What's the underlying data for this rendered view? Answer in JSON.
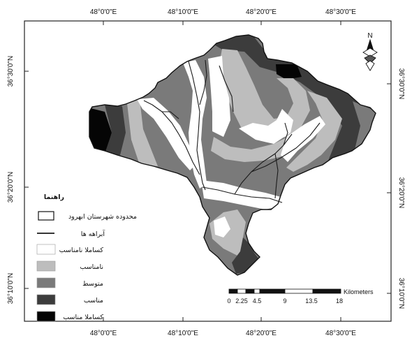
{
  "axes": {
    "top": [
      "48°0'0\"E",
      "48°10'0\"E",
      "48°20'0\"E",
      "48°30'0\"E"
    ],
    "bottom": [
      "48°0'0\"E",
      "48°10'0\"E",
      "48°20'0\"E",
      "48°30'0\"E"
    ],
    "left": [
      "36°30'0\"N",
      "36°20'0\"N",
      "36°10'0\"N"
    ],
    "right": [
      "36°30'0\"N",
      "36°20'0\"N",
      "36°10'0\"N"
    ]
  },
  "north_arrow": {
    "letter": "N",
    "icon": "compass-rose-icon"
  },
  "legend": {
    "title": "راهنما",
    "boundary_label": "محدوده شهرستان ابهرود",
    "rivers_label": "آبراهه ها",
    "classes": [
      {
        "label": "كساملا نامناسب",
        "color": "#ffffff"
      },
      {
        "label": "نامناسب",
        "color": "#bdbdbd"
      },
      {
        "label": "متوسط",
        "color": "#7a7a7a"
      },
      {
        "label": "مناسب",
        "color": "#3c3c3c"
      },
      {
        "label": "كساملا مناسب",
        "color": "#050505"
      }
    ]
  },
  "scale_bar": {
    "unit": "Kilometers",
    "ticks": [
      "0",
      "2.25",
      "4.5",
      "9",
      "13.5",
      "18"
    ]
  },
  "colors": {
    "boundary": "#111111",
    "river": "#1a1a1a",
    "very_unsuitable": "#ffffff",
    "unsuitable": "#bdbdbd",
    "moderate": "#7a7a7a",
    "suitable": "#3c3c3c",
    "very_suitable": "#050505"
  }
}
